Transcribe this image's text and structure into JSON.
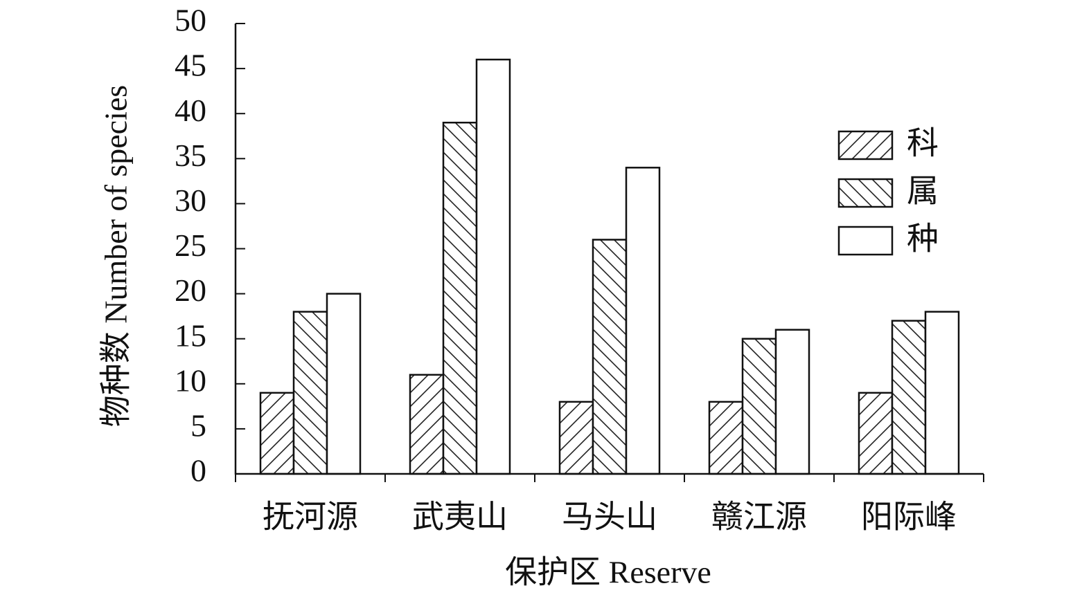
{
  "chart_data": {
    "type": "bar",
    "x_label": "保护区 Reserve",
    "y_label": "物种数 Number of species",
    "categories": [
      "抚河源",
      "武夷山",
      "马头山",
      "赣江源",
      "阳际峰"
    ],
    "series": [
      {
        "name": "科",
        "color": "#ffffff",
        "hatch": "forward",
        "values": [
          9,
          11,
          8,
          8,
          9
        ]
      },
      {
        "name": "属",
        "color": "#ffffff",
        "hatch": "backward",
        "values": [
          18,
          39,
          26,
          15,
          17
        ]
      },
      {
        "name": "种",
        "color": "#ffffff",
        "hatch": "none",
        "values": [
          20,
          46,
          34,
          16,
          18
        ]
      }
    ],
    "ylim": [
      0,
      50
    ],
    "yticks": [
      0,
      5,
      10,
      15,
      20,
      25,
      30,
      35,
      40,
      45,
      50
    ],
    "legend": "upper-right"
  }
}
